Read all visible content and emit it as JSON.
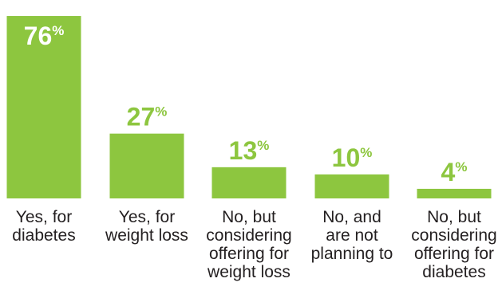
{
  "chart_data": {
    "type": "bar",
    "categories": [
      [
        "Yes, for",
        "diabetes"
      ],
      [
        "Yes, for",
        "weight loss"
      ],
      [
        "No, but",
        "considering",
        "offering for",
        "weight loss"
      ],
      [
        "No, and",
        "are not",
        "planning to"
      ],
      [
        "No, but",
        "considering",
        "offering for",
        "diabetes"
      ]
    ],
    "values": [
      76,
      27,
      13,
      10,
      4
    ],
    "value_labels": [
      "76",
      "27",
      "13",
      "10",
      "4"
    ],
    "value_suffix": "%",
    "ylim": [
      0,
      80
    ],
    "bar_color": "#8dc63f",
    "inside_label_color": "#ffffff",
    "outside_label_color": "#8dc63f",
    "text_color": "#231f20",
    "title": "",
    "xlabel": "",
    "ylabel": "",
    "grid": false
  }
}
